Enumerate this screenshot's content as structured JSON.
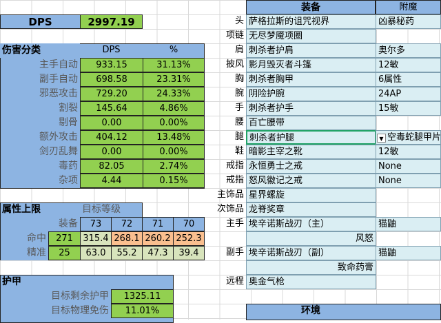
{
  "colors": {
    "header_blue": "#8db4e2",
    "value_green": "#92d050",
    "equip_light_blue": "#daeef3",
    "over_cap_orange": "#fabf8f",
    "under_cap_light_green": "#d8e4bc",
    "selected_border": "#21a366"
  },
  "dps": {
    "label": "DPS",
    "value": "2997.19"
  },
  "damage": {
    "title": "伤害分类",
    "col_dps": "DPS",
    "col_pct": "%",
    "rows": [
      {
        "name": "主手自动",
        "dps": "933.15",
        "pct": "31.13%"
      },
      {
        "name": "副手自动",
        "dps": "698.58",
        "pct": "23.31%"
      },
      {
        "name": "邪恶攻击",
        "dps": "729.20",
        "pct": "24.33%"
      },
      {
        "name": "割裂",
        "dps": "145.64",
        "pct": "4.86%"
      },
      {
        "name": "剔骨",
        "dps": "0.00",
        "pct": "0.00%"
      },
      {
        "name": "额外攻击",
        "dps": "404.12",
        "pct": "13.48%"
      },
      {
        "name": "剑刃乱舞",
        "dps": "0.00",
        "pct": "0.00%"
      },
      {
        "name": "毒药",
        "dps": "82.05",
        "pct": "2.74%"
      },
      {
        "name": "杂项",
        "dps": "4.44",
        "pct": "0.15%"
      }
    ]
  },
  "caps": {
    "title": "属性上限",
    "target_level": "目标等级",
    "gear": "装备",
    "levels": [
      "73",
      "72",
      "71",
      "70"
    ],
    "rows": [
      {
        "name": "命中",
        "gear": "271",
        "values": [
          "315.4",
          "268.1",
          "260.2",
          "252.3"
        ],
        "over": [
          false,
          true,
          true,
          true
        ]
      },
      {
        "name": "精准",
        "gear": "25",
        "values": [
          "63.0",
          "55.2",
          "47.3",
          "39.4"
        ],
        "over": [
          false,
          false,
          false,
          false
        ]
      }
    ]
  },
  "armor": {
    "title": "护甲",
    "rows": [
      {
        "name": "目标剩余护甲",
        "value": "1325.11"
      },
      {
        "name": "目标物理免伤",
        "value": "11.01%"
      }
    ]
  },
  "equipment": {
    "col_item": "装备",
    "col_enchant": "附魔",
    "rows": [
      {
        "slot": "头",
        "item": "萨格拉斯的诅咒视界",
        "enchant": "凶暴秘药"
      },
      {
        "slot": "项链",
        "item": "无尽梦魇项圈",
        "enchant": ""
      },
      {
        "slot": "肩",
        "item": "刺杀者护肩",
        "enchant": "奥尔多"
      },
      {
        "slot": "披风",
        "item": "影月毁灭者斗篷",
        "enchant": "12敏"
      },
      {
        "slot": "胸",
        "item": "刺杀者胸甲",
        "enchant": "6属性"
      },
      {
        "slot": "腕",
        "item": "阴险护腕",
        "enchant": "24AP"
      },
      {
        "slot": "手",
        "item": "刺杀者护手",
        "enchant": "15敏"
      },
      {
        "slot": "腰",
        "item": "百亡腰带",
        "enchant": ""
      },
      {
        "slot": "腿",
        "item": "刺杀者护腿",
        "enchant": "空毒蛇腿甲片",
        "selected": true
      },
      {
        "slot": "鞋",
        "item": "暗影主宰之靴",
        "enchant": "12敏"
      },
      {
        "slot": "戒指",
        "item": "永恒勇士之戒",
        "enchant": "None"
      },
      {
        "slot": "戒指",
        "item": "怒风徽记之戒",
        "enchant": "None"
      },
      {
        "slot": "主饰品",
        "item": "星界螺旋",
        "enchant": ""
      },
      {
        "slot": "次饰品",
        "item": "龙脊奖章",
        "enchant": ""
      },
      {
        "slot": "主手",
        "item": "埃辛诺斯战刃（主）",
        "enchant": "猫鼬"
      },
      {
        "slot": "",
        "item": "风怒",
        "enchant": "",
        "right": true
      },
      {
        "slot": "副手",
        "item": "埃辛诺斯战刃（副）",
        "enchant": "猫鼬"
      },
      {
        "slot": "",
        "item": "致命药膏",
        "enchant": "",
        "right": true
      },
      {
        "slot": "远程",
        "item": "奥金气枪",
        "enchant": ""
      }
    ]
  },
  "environment": {
    "title": "环境"
  }
}
